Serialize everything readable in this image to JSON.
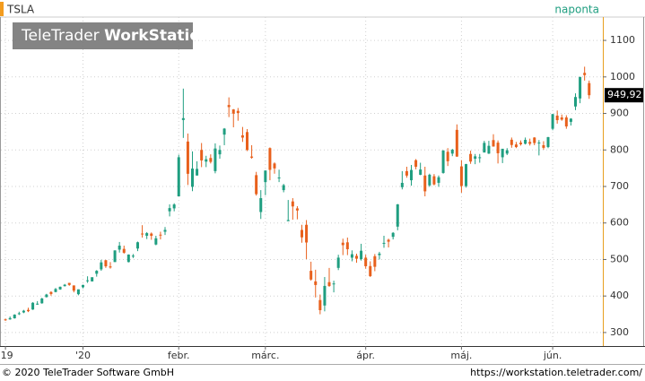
{
  "chart_data": {
    "type": "candlestick",
    "symbol": "TSLA",
    "interval": "naponta",
    "logo": {
      "light": "TeleTrader",
      "bold": "WorkStation"
    },
    "up_color": "#1f9e80",
    "down_color": "#e8601c",
    "ylim": [
      263,
      1164
    ],
    "yticks": [
      300,
      400,
      500,
      600,
      700,
      800,
      900,
      1000,
      1100
    ],
    "xlim": [
      -1,
      131
    ],
    "xticks": [
      {
        "value": 0,
        "label": "'19"
      },
      {
        "value": 17,
        "label": "'20"
      },
      {
        "value": 38,
        "label": "febr."
      },
      {
        "value": 57,
        "label": "márc."
      },
      {
        "value": 79,
        "label": "ápr."
      },
      {
        "value": 100,
        "label": "máj."
      },
      {
        "value": 120,
        "label": "jún."
      }
    ],
    "grid": true,
    "last": {
      "value": 949.92,
      "label": "949,92"
    },
    "candles": [
      [
        336,
        338,
        332,
        335.9
      ],
      [
        336,
        344,
        335,
        339.5
      ],
      [
        339,
        350,
        338,
        349
      ],
      [
        351,
        357,
        348,
        352.7
      ],
      [
        355,
        362,
        353,
        359.7
      ],
      [
        362,
        368,
        356,
        358.4
      ],
      [
        363,
        383,
        362,
        381.5
      ],
      [
        379,
        386,
        376,
        379
      ],
      [
        380,
        395,
        379,
        393.2
      ],
      [
        397,
        406,
        396,
        404
      ],
      [
        411,
        413,
        401,
        405.6
      ],
      [
        411,
        422,
        410,
        419.2
      ],
      [
        418,
        426,
        417,
        425.3
      ],
      [
        427,
        433,
        426,
        430.9
      ],
      [
        436,
        436,
        428,
        430.4
      ],
      [
        429,
        429,
        410,
        414.7
      ],
      [
        405,
        418,
        402,
        418.3
      ],
      [
        424,
        431,
        421,
        430.3
      ],
      [
        441,
        454,
        436,
        443
      ],
      [
        440,
        451,
        440,
        451.5
      ],
      [
        461,
        471,
        453,
        469.1
      ],
      [
        473,
        499,
        469,
        492.1
      ],
      [
        498,
        499,
        477,
        481.3
      ],
      [
        481,
        493,
        475,
        478.2
      ],
      [
        493,
        525,
        493,
        524.9
      ],
      [
        527,
        548,
        519,
        537.9
      ],
      [
        529,
        538,
        516,
        518.5
      ],
      [
        493,
        514,
        492,
        513.5
      ],
      [
        508,
        515,
        504,
        510.5
      ],
      [
        530,
        549,
        523,
        547.2
      ],
      [
        571,
        594,
        560,
        569.6
      ],
      [
        565,
        575,
        556,
        572.2
      ],
      [
        571,
        574,
        554,
        564.8
      ],
      [
        541,
        565,
        539,
        558
      ],
      [
        568,
        576,
        555,
        566.9
      ],
      [
        576,
        589,
        567,
        581
      ],
      [
        632,
        651,
        618,
        640.8
      ],
      [
        640,
        654,
        632,
        650.6
      ],
      [
        673,
        787,
        673,
        780
      ],
      [
        882,
        968,
        833,
        887.1
      ],
      [
        823,
        845,
        704,
        734.7
      ],
      [
        699,
        796,
        687,
        749
      ],
      [
        730,
        769,
        730,
        748.1
      ],
      [
        800,
        819,
        753,
        771.3
      ],
      [
        768,
        784,
        753,
        774.4
      ],
      [
        778,
        788,
        763,
        767.3
      ],
      [
        742,
        818,
        736,
        804
      ],
      [
        788,
        812,
        776,
        800
      ],
      [
        842,
        860,
        813,
        858.4
      ],
      [
        923,
        944,
        890,
        917.4
      ],
      [
        911,
        912,
        862,
        899.4
      ],
      [
        907,
        915,
        880,
        901
      ],
      [
        840,
        863,
        822,
        833.8
      ],
      [
        849,
        857,
        797,
        799.9
      ],
      [
        782,
        813,
        776,
        778.8
      ],
      [
        731,
        740,
        675,
        679
      ],
      [
        630,
        690,
        611,
        668
      ],
      [
        712,
        744,
        676,
        743.6
      ],
      [
        805,
        807,
        717,
        745.5
      ],
      [
        763,
        766,
        735,
        749.5
      ],
      [
        723,
        746,
        712,
        724.5
      ],
      [
        690,
        707,
        684,
        703.5
      ],
      [
        605,
        663,
        605,
        608
      ],
      [
        659,
        668,
        609,
        645.3
      ],
      [
        640,
        646,
        610,
        634.2
      ],
      [
        581,
        595,
        546,
        560.6
      ],
      [
        595,
        608,
        501,
        546.6
      ],
      [
        469,
        494,
        442,
        445.1
      ],
      [
        440,
        472,
        396,
        430.2
      ],
      [
        389,
        404,
        350,
        361.2
      ],
      [
        374,
        452,
        358,
        427.6
      ],
      [
        438,
        477,
        425,
        427.5
      ],
      [
        433,
        442,
        410,
        434.3
      ],
      [
        477,
        513,
        471,
        505
      ],
      [
        546,
        557,
        512,
        539.3
      ],
      [
        547,
        560,
        512,
        528.2
      ],
      [
        505,
        525,
        495,
        514.4
      ],
      [
        510,
        516,
        491,
        502.1
      ],
      [
        501,
        543,
        497,
        524
      ],
      [
        505,
        513,
        475,
        481.6
      ],
      [
        482,
        495,
        452,
        454.5
      ],
      [
        509,
        515,
        468,
        480
      ],
      [
        512,
        521,
        500,
        516.2
      ],
      [
        545,
        565,
        532,
        545.5
      ],
      [
        554,
        557,
        533,
        548.8
      ],
      [
        562,
        575,
        555,
        573
      ],
      [
        590,
        652,
        580,
        651
      ],
      [
        698,
        742,
        692,
        709.9
      ],
      [
        742,
        754,
        724,
        729.8
      ],
      [
        717,
        759,
        702,
        745.2
      ],
      [
        772,
        775,
        747,
        753.9
      ],
      [
        732,
        765,
        731,
        746.4
      ],
      [
        730,
        754,
        673,
        686.7
      ],
      [
        703,
        735,
        699,
        732.1
      ],
      [
        728,
        734,
        703,
        705.6
      ],
      [
        710,
        730,
        699,
        725.2
      ],
      [
        737,
        799,
        735,
        798.8
      ],
      [
        795,
        805,
        756,
        769.1
      ],
      [
        790,
        803,
        783,
        800.5
      ],
      [
        855,
        870,
        781,
        781.9
      ],
      [
        755,
        772,
        683,
        701.3
      ],
      [
        701,
        762,
        697,
        761.2
      ],
      [
        789,
        798,
        762,
        768.2
      ],
      [
        776,
        789,
        761,
        782.6
      ],
      [
        778,
        789,
        765,
        780
      ],
      [
        793,
        825,
        793,
        819.4
      ],
      [
        790,
        825,
        789,
        811.3
      ],
      [
        827,
        843,
        809,
        809.4
      ],
      [
        820,
        826,
        763,
        791
      ],
      [
        780,
        803,
        764,
        803.3
      ],
      [
        790,
        805,
        786,
        799.2
      ],
      [
        828,
        834,
        806,
        813.6
      ],
      [
        815,
        822,
        805,
        808
      ],
      [
        820,
        826,
        812,
        815.6
      ],
      [
        817,
        834,
        815,
        827.6
      ],
      [
        822,
        831,
        812,
        816.9
      ],
      [
        834,
        835,
        813,
        818.9
      ],
      [
        820,
        827,
        785,
        820.2
      ],
      [
        813,
        824,
        801,
        805.8
      ],
      [
        808,
        836,
        805,
        835
      ],
      [
        858,
        899,
        854,
        898.1
      ],
      [
        894,
        908,
        872,
        881.6
      ],
      [
        889,
        897,
        880,
        883
      ],
      [
        889,
        895,
        858,
        864.4
      ],
      [
        877,
        887,
        867,
        885.7
      ],
      [
        919,
        955,
        909,
        945
      ],
      [
        941,
        1000,
        928,
        1000
      ],
      [
        1011,
        1028,
        990,
        1005
      ],
      [
        983,
        990,
        940,
        949.92
      ]
    ]
  },
  "footer": {
    "copyright": "© 2020 TeleTrader Software GmbH",
    "url": "https://workstation.teletrader.com/"
  }
}
